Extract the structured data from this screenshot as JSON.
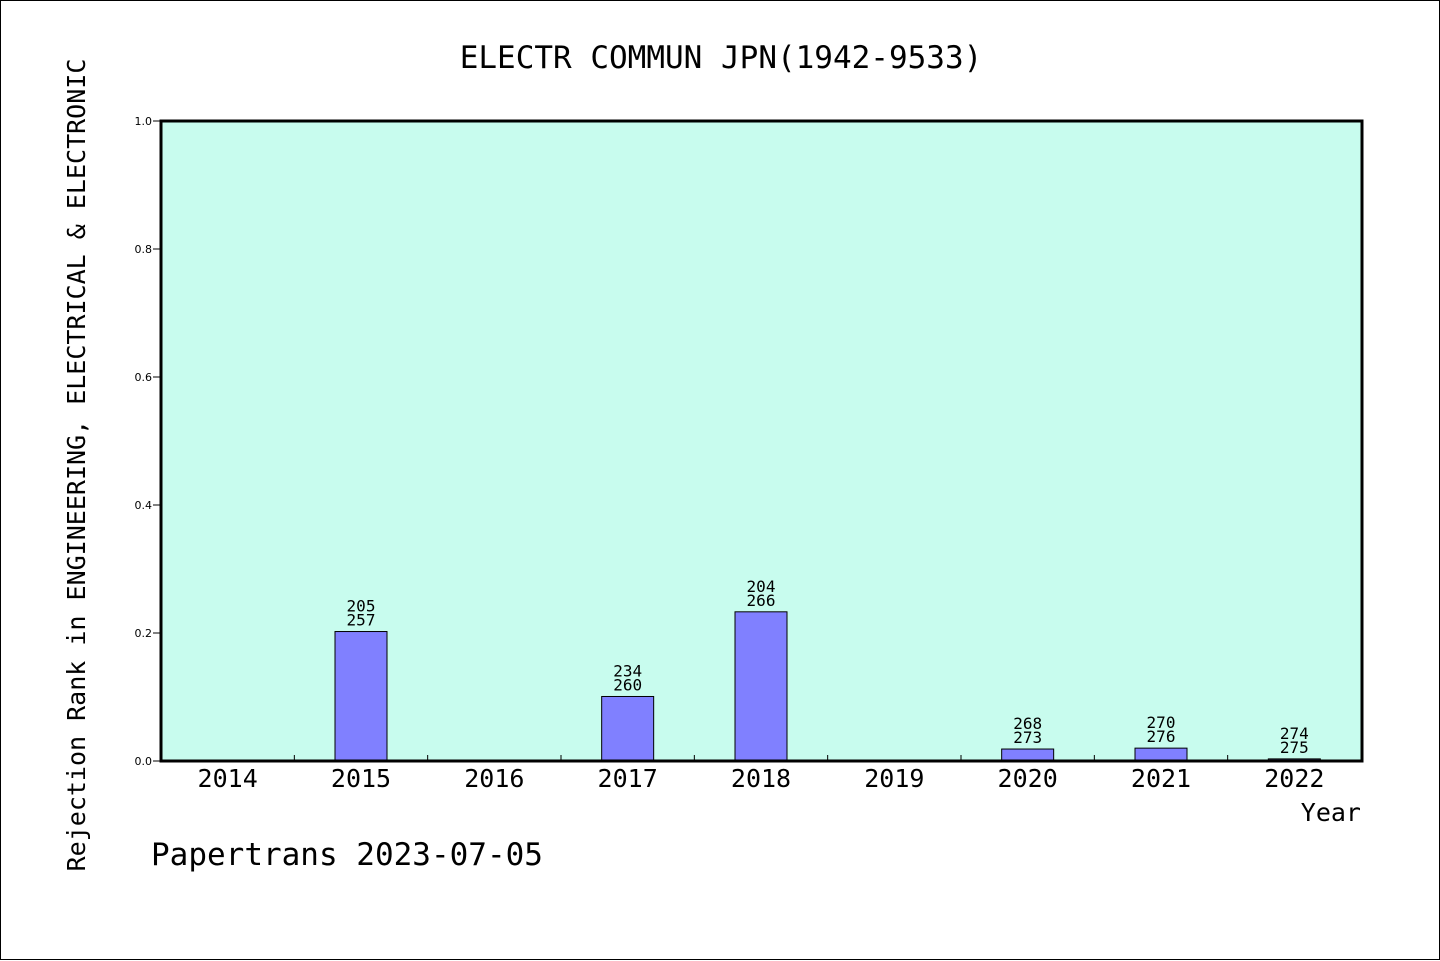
{
  "chart_data": {
    "type": "bar",
    "title": "ELECTR COMMUN JPN(1942-9533)",
    "xlabel": "Year",
    "ylabel": "Rejection Rank in ENGINEERING, ELECTRICAL & ELECTRONIC",
    "ylim": [
      0,
      1.0
    ],
    "yticks": [
      "0.0",
      "0.2",
      "0.4",
      "0.6",
      "0.8",
      "1.0"
    ],
    "categories": [
      "2014",
      "2015",
      "2016",
      "2017",
      "2018",
      "2019",
      "2020",
      "2021",
      "2022"
    ],
    "values": [
      null,
      0.2023,
      null,
      0.1008,
      0.2331,
      null,
      0.0187,
      0.0201,
      0.0033
    ],
    "labels": [
      null,
      [
        "205",
        "257"
      ],
      null,
      [
        "234",
        "260"
      ],
      [
        "204",
        "266"
      ],
      null,
      [
        "268",
        "273"
      ],
      [
        "270",
        "276"
      ],
      [
        "274",
        "275"
      ]
    ],
    "grid": false,
    "plot_background": "#c8fcee",
    "bar_color": "#8080ff"
  },
  "footer": "Papertrans 2023-07-05"
}
